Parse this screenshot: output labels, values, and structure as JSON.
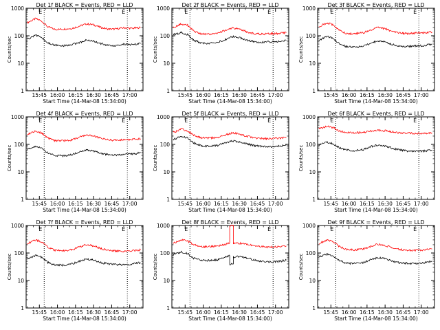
{
  "chart_data": [
    {
      "type": "line",
      "title": "Det 1f BLACK = Events, RED = LLD",
      "xlabel": "Start Time (14-Mar-08 15:34:00)",
      "ylabel": "Counts/sec",
      "yscale": "log",
      "ylim": [
        1,
        1000
      ],
      "xlim": [
        "15:34",
        "17:11"
      ],
      "xticks": [
        "15:45",
        "16:00",
        "16:15",
        "16:30",
        "16:45",
        "17:00"
      ],
      "yticks": [
        "1",
        "10",
        "100",
        "1000"
      ],
      "markers": [
        {
          "time": "15:49",
          "label": "E"
        },
        {
          "time": "16:58",
          "label": "E"
        }
      ],
      "series": [
        {
          "color": "#ff0000",
          "x": [
            "15:35",
            "15:42",
            "15:47",
            "15:52",
            "15:58",
            "16:05",
            "16:12",
            "16:19",
            "16:24",
            "16:30",
            "16:36",
            "16:42",
            "16:48",
            "16:55",
            "17:02",
            "17:09"
          ],
          "y": [
            300,
            420,
            340,
            210,
            170,
            175,
            185,
            230,
            270,
            250,
            200,
            175,
            175,
            195,
            185,
            200
          ]
        },
        {
          "color": "#000000",
          "x": [
            "15:35",
            "15:42",
            "15:47",
            "15:52",
            "15:58",
            "16:05",
            "16:12",
            "16:19",
            "16:24",
            "16:30",
            "16:36",
            "16:42",
            "16:48",
            "16:55",
            "17:02",
            "17:09"
          ],
          "y": [
            75,
            105,
            85,
            55,
            45,
            43,
            47,
            58,
            70,
            64,
            52,
            45,
            44,
            50,
            47,
            52
          ]
        }
      ]
    },
    {
      "type": "line",
      "title": "Det 2f BLACK = Events, RED = LLD",
      "xlabel": "Start Time (14-Mar-08 15:34:00)",
      "ylabel": "Counts/sec",
      "yscale": "log",
      "ylim": [
        1,
        1000
      ],
      "xlim": [
        "15:34",
        "17:11"
      ],
      "xticks": [
        "15:45",
        "16:00",
        "16:15",
        "16:30",
        "16:45",
        "17:00"
      ],
      "yticks": [
        "1",
        "10",
        "100",
        "1000"
      ],
      "markers": [
        {
          "time": "15:49",
          "label": "E"
        },
        {
          "time": "16:58",
          "label": "E"
        }
      ],
      "series": [
        {
          "color": "#ff0000",
          "x": [
            "15:35",
            "15:42",
            "15:47",
            "15:52",
            "15:58",
            "16:05",
            "16:12",
            "16:19",
            "16:24",
            "16:30",
            "16:36",
            "16:42",
            "16:48",
            "16:55",
            "17:02",
            "17:09"
          ],
          "y": [
            200,
            270,
            240,
            150,
            115,
            115,
            125,
            160,
            190,
            175,
            140,
            120,
            115,
            120,
            120,
            130
          ]
        },
        {
          "color": "#000000",
          "x": [
            "15:35",
            "15:42",
            "15:47",
            "15:52",
            "15:58",
            "16:05",
            "16:12",
            "16:19",
            "16:24",
            "16:30",
            "16:36",
            "16:42",
            "16:48",
            "16:55",
            "17:02",
            "17:09"
          ],
          "y": [
            110,
            130,
            110,
            70,
            55,
            52,
            58,
            75,
            95,
            85,
            70,
            60,
            58,
            60,
            62,
            68
          ]
        }
      ]
    },
    {
      "type": "line",
      "title": "Det 3f BLACK = Events, RED = LLD",
      "xlabel": "Start Time (14-Mar-08 15:34:00)",
      "ylabel": "Counts/sec",
      "yscale": "log",
      "ylim": [
        1,
        1000
      ],
      "xlim": [
        "15:34",
        "17:11"
      ],
      "xticks": [
        "15:45",
        "16:00",
        "16:15",
        "16:30",
        "16:45",
        "17:00"
      ],
      "yticks": [
        "1",
        "10",
        "100",
        "1000"
      ],
      "markers": [
        {
          "time": "15:49",
          "label": "E"
        },
        {
          "time": "16:58",
          "label": "E"
        }
      ],
      "series": [
        {
          "color": "#ff0000",
          "x": [
            "15:35",
            "15:42",
            "15:47",
            "15:52",
            "15:58",
            "16:05",
            "16:12",
            "16:19",
            "16:24",
            "16:30",
            "16:36",
            "16:42",
            "16:48",
            "16:55",
            "17:02",
            "17:09"
          ],
          "y": [
            220,
            290,
            250,
            160,
            120,
            118,
            130,
            170,
            200,
            180,
            145,
            125,
            120,
            125,
            128,
            135
          ]
        },
        {
          "color": "#000000",
          "x": [
            "15:35",
            "15:42",
            "15:47",
            "15:52",
            "15:58",
            "16:05",
            "16:12",
            "16:19",
            "16:24",
            "16:30",
            "16:36",
            "16:42",
            "16:48",
            "16:55",
            "17:02",
            "17:09"
          ],
          "y": [
            70,
            95,
            80,
            50,
            40,
            38,
            42,
            55,
            65,
            60,
            48,
            42,
            40,
            43,
            44,
            50
          ]
        }
      ]
    },
    {
      "type": "line",
      "title": "Det 4f BLACK = Events, RED = LLD",
      "xlabel": "Start Time (14-Mar-08 15:34:00)",
      "ylabel": "Counts/sec",
      "yscale": "log",
      "ylim": [
        1,
        1000
      ],
      "xlim": [
        "15:34",
        "17:11"
      ],
      "xticks": [
        "15:45",
        "16:00",
        "16:15",
        "16:30",
        "16:45",
        "17:00"
      ],
      "yticks": [
        "1",
        "10",
        "100",
        "1000"
      ],
      "markers": [
        {
          "time": "15:49",
          "label": "E"
        },
        {
          "time": "16:58",
          "label": "E"
        }
      ],
      "series": [
        {
          "color": "#ff0000",
          "x": [
            "15:35",
            "15:42",
            "15:47",
            "15:52",
            "15:58",
            "16:05",
            "16:12",
            "16:19",
            "16:24",
            "16:30",
            "16:36",
            "16:42",
            "16:48",
            "16:55",
            "17:02",
            "17:09"
          ],
          "y": [
            230,
            300,
            260,
            170,
            135,
            135,
            145,
            190,
            220,
            200,
            165,
            145,
            140,
            145,
            150,
            160
          ]
        },
        {
          "color": "#000000",
          "x": [
            "15:35",
            "15:42",
            "15:47",
            "15:52",
            "15:58",
            "16:05",
            "16:12",
            "16:19",
            "16:24",
            "16:30",
            "16:36",
            "16:42",
            "16:48",
            "16:55",
            "17:02",
            "17:09"
          ],
          "y": [
            65,
            85,
            72,
            48,
            40,
            38,
            42,
            55,
            62,
            58,
            47,
            42,
            40,
            43,
            44,
            50
          ]
        }
      ]
    },
    {
      "type": "line",
      "title": "Det 5f BLACK = Events, RED = LLD",
      "xlabel": "Start Time (14-Mar-08 15:34:00)",
      "ylabel": "Counts/sec",
      "yscale": "log",
      "ylim": [
        1,
        1000
      ],
      "xlim": [
        "15:34",
        "17:11"
      ],
      "xticks": [
        "15:45",
        "16:00",
        "16:15",
        "16:30",
        "16:45",
        "17:00"
      ],
      "yticks": [
        "1",
        "10",
        "100",
        "1000"
      ],
      "markers": [
        {
          "time": "15:49",
          "label": "E"
        },
        {
          "time": "16:58",
          "label": "E"
        }
      ],
      "series": [
        {
          "color": "#ff0000",
          "x": [
            "15:35",
            "15:42",
            "15:47",
            "15:52",
            "15:58",
            "16:05",
            "16:12",
            "16:19",
            "16:24",
            "16:30",
            "16:36",
            "16:42",
            "16:48",
            "16:55",
            "17:02",
            "17:09"
          ],
          "y": [
            270,
            360,
            310,
            220,
            175,
            170,
            180,
            225,
            260,
            240,
            200,
            175,
            165,
            160,
            165,
            180
          ]
        },
        {
          "color": "#000000",
          "x": [
            "15:35",
            "15:42",
            "15:47",
            "15:52",
            "15:58",
            "16:05",
            "16:12",
            "16:19",
            "16:24",
            "16:30",
            "16:36",
            "16:42",
            "16:48",
            "16:55",
            "17:02",
            "17:09"
          ],
          "y": [
            150,
            195,
            170,
            115,
            90,
            85,
            92,
            115,
            135,
            125,
            105,
            90,
            85,
            82,
            85,
            95
          ]
        }
      ]
    },
    {
      "type": "line",
      "title": "Det 6f BLACK = Events, RED = LLD",
      "xlabel": "Start Time (14-Mar-08 15:34:00)",
      "ylabel": "Counts/sec",
      "yscale": "log",
      "ylim": [
        1,
        1000
      ],
      "xlim": [
        "15:34",
        "17:11"
      ],
      "xticks": [
        "15:45",
        "16:00",
        "16:15",
        "16:30",
        "16:45",
        "17:00"
      ],
      "yticks": [
        "1",
        "10",
        "100",
        "1000"
      ],
      "markers": [
        {
          "time": "15:49",
          "label": "E"
        },
        {
          "time": "16:58",
          "label": "E"
        }
      ],
      "series": [
        {
          "color": "#ff0000",
          "x": [
            "15:35",
            "15:42",
            "15:47",
            "15:52",
            "15:58",
            "16:05",
            "16:12",
            "16:19",
            "16:24",
            "16:30",
            "16:36",
            "16:42",
            "16:48",
            "16:55",
            "17:02",
            "17:09"
          ],
          "y": [
            380,
            450,
            400,
            310,
            270,
            265,
            275,
            310,
            330,
            315,
            285,
            265,
            255,
            250,
            250,
            260
          ]
        },
        {
          "color": "#000000",
          "x": [
            "15:35",
            "15:42",
            "15:47",
            "15:52",
            "15:58",
            "16:05",
            "16:12",
            "16:19",
            "16:24",
            "16:30",
            "16:36",
            "16:42",
            "16:48",
            "16:55",
            "17:02",
            "17:09"
          ],
          "y": [
            95,
            120,
            105,
            75,
            62,
            60,
            65,
            85,
            95,
            88,
            72,
            63,
            58,
            56,
            57,
            62
          ]
        }
      ]
    },
    {
      "type": "line",
      "title": "Det 7f BLACK = Events, RED = LLD",
      "xlabel": "Start Time (14-Mar-08 15:34:00)",
      "ylabel": "Counts/sec",
      "yscale": "log",
      "ylim": [
        1,
        1000
      ],
      "xlim": [
        "15:34",
        "17:11"
      ],
      "xticks": [
        "15:45",
        "16:00",
        "16:15",
        "16:30",
        "16:45",
        "17:00"
      ],
      "yticks": [
        "1",
        "10",
        "100",
        "1000"
      ],
      "markers": [
        {
          "time": "15:49",
          "label": "E"
        },
        {
          "time": "16:58",
          "label": "E"
        }
      ],
      "series": [
        {
          "color": "#ff0000",
          "x": [
            "15:35",
            "15:42",
            "15:47",
            "15:52",
            "15:58",
            "16:05",
            "16:12",
            "16:19",
            "16:24",
            "16:30",
            "16:36",
            "16:42",
            "16:48",
            "16:55",
            "17:02",
            "17:09"
          ],
          "y": [
            220,
            300,
            250,
            160,
            125,
            120,
            130,
            170,
            200,
            180,
            145,
            125,
            118,
            115,
            120,
            130
          ]
        },
        {
          "color": "#000000",
          "x": [
            "15:35",
            "15:42",
            "15:47",
            "15:52",
            "15:58",
            "16:05",
            "16:12",
            "16:19",
            "16:24",
            "16:30",
            "16:36",
            "16:42",
            "16:48",
            "16:55",
            "17:02",
            "17:09"
          ],
          "y": [
            60,
            82,
            70,
            45,
            37,
            36,
            40,
            52,
            60,
            55,
            45,
            40,
            38,
            37,
            40,
            45
          ]
        }
      ]
    },
    {
      "type": "line",
      "title": "Det 8f BLACK = Events, RED = LLD",
      "xlabel": "Start Time (14-Mar-08 15:34:00)",
      "ylabel": "Counts/sec",
      "yscale": "log",
      "ylim": [
        1,
        1000
      ],
      "xlim": [
        "15:34",
        "17:11"
      ],
      "xticks": [
        "15:45",
        "16:00",
        "16:15",
        "16:30",
        "16:45",
        "17:00"
      ],
      "yticks": [
        "1",
        "10",
        "100",
        "1000"
      ],
      "markers": [
        {
          "time": "15:49",
          "label": "E"
        },
        {
          "time": "16:58",
          "label": "E"
        }
      ],
      "series": [
        {
          "color": "#ff0000",
          "x": [
            "15:35",
            "15:42",
            "15:47",
            "15:52",
            "15:58",
            "16:05",
            "16:12",
            "16:19",
            "16:22",
            "16:22",
            "16:25",
            "16:25",
            "16:28",
            "16:34",
            "16:40",
            "16:46",
            "16:52",
            "16:58",
            "17:04",
            "17:09"
          ],
          "y": [
            230,
            300,
            270,
            200,
            170,
            170,
            180,
            210,
            230,
            1000,
            1000,
            220,
            230,
            220,
            195,
            175,
            165,
            165,
            170,
            180
          ]
        },
        {
          "color": "#000000",
          "x": [
            "15:35",
            "15:42",
            "15:47",
            "15:52",
            "15:58",
            "16:05",
            "16:12",
            "16:19",
            "16:22",
            "16:22",
            "16:25",
            "16:25",
            "16:28",
            "16:34",
            "16:40",
            "16:46",
            "16:52",
            "16:58",
            "17:04",
            "17:09"
          ],
          "y": [
            85,
            110,
            95,
            65,
            55,
            53,
            57,
            72,
            80,
            40,
            40,
            70,
            75,
            70,
            60,
            52,
            48,
            47,
            50,
            55
          ]
        }
      ]
    },
    {
      "type": "line",
      "title": "Det 9f BLACK = Events, RED = LLD",
      "xlabel": "Start Time (14-Mar-08 15:34:00)",
      "ylabel": "Counts/sec",
      "yscale": "log",
      "ylim": [
        1,
        1000
      ],
      "xlim": [
        "15:34",
        "17:11"
      ],
      "xticks": [
        "15:45",
        "16:00",
        "16:15",
        "16:30",
        "16:45",
        "17:00"
      ],
      "yticks": [
        "1",
        "10",
        "100",
        "1000"
      ],
      "markers": [
        {
          "time": "15:49",
          "label": "E"
        },
        {
          "time": "16:58",
          "label": "E"
        }
      ],
      "series": [
        {
          "color": "#ff0000",
          "x": [
            "15:35",
            "15:42",
            "15:47",
            "15:52",
            "15:58",
            "16:05",
            "16:12",
            "16:19",
            "16:24",
            "16:30",
            "16:36",
            "16:42",
            "16:48",
            "16:55",
            "17:02",
            "17:09"
          ],
          "y": [
            220,
            300,
            260,
            170,
            135,
            130,
            140,
            180,
            210,
            190,
            155,
            135,
            128,
            125,
            130,
            140
          ]
        },
        {
          "color": "#000000",
          "x": [
            "15:35",
            "15:42",
            "15:47",
            "15:52",
            "15:58",
            "16:05",
            "16:12",
            "16:19",
            "16:24",
            "16:30",
            "16:36",
            "16:42",
            "16:48",
            "16:55",
            "17:02",
            "17:09"
          ],
          "y": [
            70,
            92,
            80,
            52,
            43,
            41,
            45,
            58,
            68,
            62,
            50,
            44,
            42,
            41,
            44,
            50
          ]
        }
      ]
    }
  ]
}
